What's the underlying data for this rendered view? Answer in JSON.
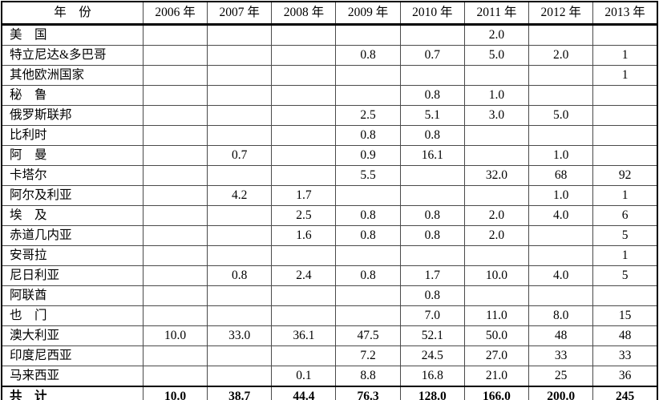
{
  "table": {
    "header": [
      "年　份",
      "2006 年",
      "2007 年",
      "2008 年",
      "2009 年",
      "2010 年",
      "2011 年",
      "2012 年",
      "2013 年"
    ],
    "rows": [
      {
        "name": "美　国",
        "values": [
          "",
          "",
          "",
          "",
          "",
          "2.0",
          "",
          ""
        ]
      },
      {
        "name": "特立尼达&多巴哥",
        "values": [
          "",
          "",
          "",
          "0.8",
          "0.7",
          "5.0",
          "2.0",
          "1"
        ]
      },
      {
        "name": "其他欧洲国家",
        "values": [
          "",
          "",
          "",
          "",
          "",
          "",
          "",
          "1"
        ]
      },
      {
        "name": "秘　鲁",
        "values": [
          "",
          "",
          "",
          "",
          "0.8",
          "1.0",
          "",
          ""
        ]
      },
      {
        "name": "俄罗斯联邦",
        "values": [
          "",
          "",
          "",
          "2.5",
          "5.1",
          "3.0",
          "5.0",
          ""
        ]
      },
      {
        "name": "比利时",
        "values": [
          "",
          "",
          "",
          "0.8",
          "0.8",
          "",
          "",
          ""
        ]
      },
      {
        "name": "阿　曼",
        "values": [
          "",
          "0.7",
          "",
          "0.9",
          "16.1",
          "",
          "1.0",
          ""
        ]
      },
      {
        "name": "卡塔尔",
        "values": [
          "",
          "",
          "",
          "5.5",
          "",
          "32.0",
          "68",
          "92"
        ]
      },
      {
        "name": "阿尔及利亚",
        "values": [
          "",
          "4.2",
          "1.7",
          "",
          "",
          "",
          "1.0",
          "1"
        ]
      },
      {
        "name": "埃　及",
        "values": [
          "",
          "",
          "2.5",
          "0.8",
          "0.8",
          "2.0",
          "4.0",
          "6"
        ]
      },
      {
        "name": "赤道几内亚",
        "values": [
          "",
          "",
          "1.6",
          "0.8",
          "0.8",
          "2.0",
          "",
          "5"
        ]
      },
      {
        "name": "安哥拉",
        "values": [
          "",
          "",
          "",
          "",
          "",
          "",
          "",
          "1"
        ]
      },
      {
        "name": "尼日利亚",
        "values": [
          "",
          "0.8",
          "2.4",
          "0.8",
          "1.7",
          "10.0",
          "4.0",
          "5"
        ]
      },
      {
        "name": "阿联酋",
        "values": [
          "",
          "",
          "",
          "",
          "0.8",
          "",
          "",
          ""
        ]
      },
      {
        "name": "也　门",
        "values": [
          "",
          "",
          "",
          "",
          "7.0",
          "11.0",
          "8.0",
          "15"
        ]
      },
      {
        "name": "澳大利亚",
        "values": [
          "10.0",
          "33.0",
          "36.1",
          "47.5",
          "52.1",
          "50.0",
          "48",
          "48"
        ]
      },
      {
        "name": "印度尼西亚",
        "values": [
          "",
          "",
          "",
          "7.2",
          "24.5",
          "27.0",
          "33",
          "33"
        ]
      },
      {
        "name": "马来西亚",
        "values": [
          "",
          "",
          "0.1",
          "8.8",
          "16.8",
          "21.0",
          "25",
          "36"
        ]
      }
    ],
    "total": {
      "name": "共　计",
      "values": [
        "10.0",
        "38.7",
        "44.4",
        "76.3",
        "128.0",
        "166.0",
        "200.0",
        "245"
      ]
    }
  }
}
